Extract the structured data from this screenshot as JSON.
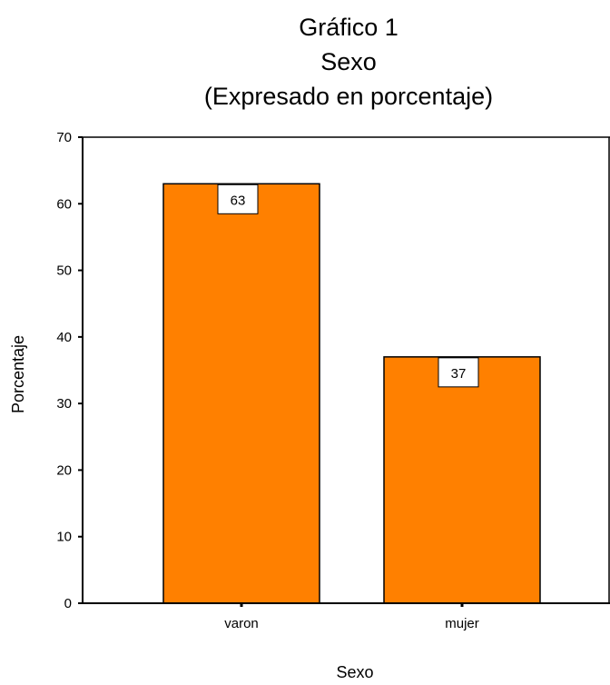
{
  "chart_data": {
    "type": "bar",
    "title": [
      "Gráfico 1",
      "Sexo",
      "(Expresado en porcentaje)"
    ],
    "categories": [
      "varon",
      "mujer"
    ],
    "values": [
      63,
      37
    ],
    "data_labels": [
      "63",
      "37"
    ],
    "xlabel": "Sexo",
    "ylabel": "Porcentaje",
    "ylim": [
      0,
      70
    ],
    "yticks": [
      0,
      10,
      20,
      30,
      40,
      50,
      60,
      70
    ],
    "grid": false,
    "legend": "none",
    "bar_color": "#FF8000"
  }
}
